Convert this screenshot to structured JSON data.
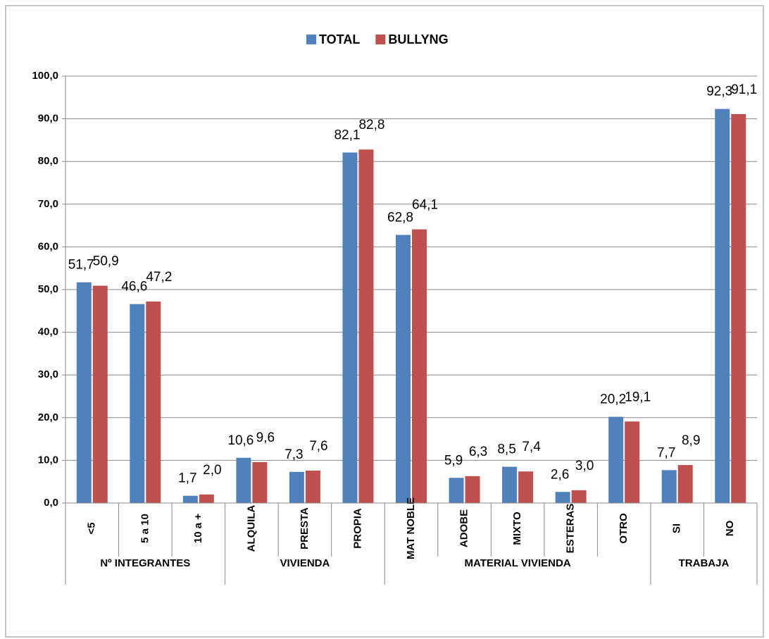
{
  "chart_data": {
    "type": "bar",
    "legend": "top",
    "categories": [
      "<5",
      "5 a 10",
      "10 a +",
      "ALQUILA",
      "PRESTA",
      "PROPIA",
      "MAT NOBLE",
      "ADOBE",
      "MIXTO",
      "ESTERAS",
      "OTRO",
      "SI",
      "NO"
    ],
    "groups": [
      {
        "name": "Nº INTEGRANTES",
        "size": 3
      },
      {
        "name": "VIVIENDA",
        "size": 3
      },
      {
        "name": "MATERIAL  VIVIENDA",
        "size": 5
      },
      {
        "name": "TRABAJA",
        "size": 2
      }
    ],
    "series": [
      {
        "name": "TOTAL",
        "color": "#4f81bd",
        "values": [
          51.7,
          46.6,
          1.7,
          10.6,
          7.3,
          82.1,
          62.8,
          5.9,
          8.5,
          2.6,
          20.2,
          7.7,
          92.3
        ],
        "value_labels": [
          "51,7",
          "46,6",
          "1,7",
          "10,6",
          "7,3",
          "82,1",
          "62,8",
          "5,9",
          "8,5",
          "2,6",
          "20,2",
          "7,7",
          "92,3"
        ]
      },
      {
        "name": "BULLYNG",
        "color": "#c0504d",
        "values": [
          50.9,
          47.2,
          2.0,
          9.6,
          7.6,
          82.8,
          64.1,
          6.3,
          7.4,
          3.0,
          19.1,
          8.9,
          91.1
        ],
        "value_labels": [
          "50,9",
          "47,2",
          "2,0",
          "9,6",
          "7,6",
          "82,8",
          "64,1",
          "6,3",
          "7,4",
          "3,0",
          "19,1",
          "8,9",
          "91,1"
        ]
      }
    ],
    "ylim": [
      0,
      100
    ],
    "yticks": [
      {
        "value": 0,
        "label": "0,0"
      },
      {
        "value": 10,
        "label": "10,0"
      },
      {
        "value": 20,
        "label": "20,0"
      },
      {
        "value": 30,
        "label": "30,0"
      },
      {
        "value": 40,
        "label": "40,0"
      },
      {
        "value": 50,
        "label": "50,0"
      },
      {
        "value": 60,
        "label": "60,0"
      },
      {
        "value": 70,
        "label": "70,0"
      },
      {
        "value": 80,
        "label": "80,0"
      },
      {
        "value": 90,
        "label": "90,0"
      },
      {
        "value": 100,
        "label": "100,0"
      }
    ],
    "grid": true
  }
}
